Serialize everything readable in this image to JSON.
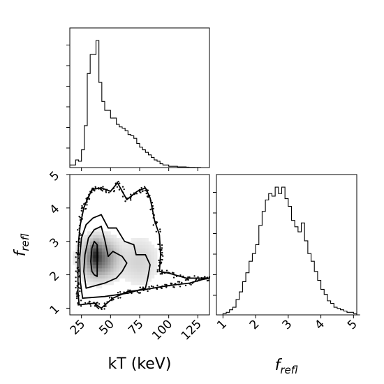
{
  "chart_data": {
    "type": "corner",
    "title": "",
    "panels": [
      {
        "id": "hist_kT",
        "type": "histogram",
        "x_param": "kT",
        "xlim": [
          15,
          135
        ],
        "x_ticks": [
          25,
          50,
          75,
          100,
          125
        ],
        "bin_width": 2.5,
        "bin_start": 15,
        "counts": [
          0.02,
          0.02,
          0.06,
          0.05,
          0.14,
          0.33,
          0.74,
          0.89,
          0.89,
          1.0,
          0.67,
          0.52,
          0.45,
          0.45,
          0.39,
          0.39,
          0.34,
          0.32,
          0.31,
          0.29,
          0.26,
          0.25,
          0.23,
          0.19,
          0.16,
          0.14,
          0.12,
          0.1,
          0.08,
          0.06,
          0.05,
          0.03,
          0.02,
          0.02,
          0.01,
          0.01,
          0.01,
          0.005,
          0.005,
          0.005,
          0.003,
          0.002,
          0.002,
          0.001,
          0.001,
          0,
          0,
          0
        ]
      },
      {
        "id": "joint_kT_frefl",
        "type": "hist2d_contour",
        "x_param": "kT",
        "y_param": "f_refl",
        "xlim": [
          15,
          135
        ],
        "ylim": [
          0.8,
          5.0
        ],
        "x_ticks": [
          25,
          50,
          75,
          100,
          125
        ],
        "y_ticks": [
          1,
          2,
          3,
          4,
          5
        ],
        "x_tick_labels": [
          "25",
          "50",
          "75",
          "100",
          "125"
        ],
        "y_tick_labels": [
          "1",
          "2",
          "3",
          "4",
          "5"
        ],
        "density_peak": {
          "x": 40,
          "y": 2.5
        },
        "contours": [
          {
            "level": 1,
            "points": [
              [
                36,
                2.0
              ],
              [
                38.5,
                1.95
              ],
              [
                38.5,
                2.5
              ],
              [
                38.5,
                2.9
              ],
              [
                36,
                3.0
              ],
              [
                34,
                2.8
              ],
              [
                33,
                2.4
              ],
              [
                34,
                2.1
              ],
              [
                36,
                2.0
              ]
            ]
          },
          {
            "level": 2,
            "points": [
              [
                29,
                1.6
              ],
              [
                45,
                1.75
              ],
              [
                55,
                1.9
              ],
              [
                60,
                2.1
              ],
              [
                64,
                2.35
              ],
              [
                60,
                2.55
              ],
              [
                52,
                2.7
              ],
              [
                48,
                2.55
              ],
              [
                45,
                3.05
              ],
              [
                42,
                3.45
              ],
              [
                36,
                3.35
              ],
              [
                31,
                3.1
              ],
              [
                28,
                2.6
              ],
              [
                27,
                2.1
              ],
              [
                29,
                1.6
              ]
            ]
          },
          {
            "level": 3,
            "points": [
              [
                26,
                1.3
              ],
              [
                45,
                1.35
              ],
              [
                65,
                1.45
              ],
              [
                80,
                1.6
              ],
              [
                82,
                1.9
              ],
              [
                84,
                2.3
              ],
              [
                80,
                2.6
              ],
              [
                72,
                2.6
              ],
              [
                70,
                2.9
              ],
              [
                62,
                3.0
              ],
              [
                55,
                3.4
              ],
              [
                48,
                3.4
              ],
              [
                42,
                3.8
              ],
              [
                35,
                3.7
              ],
              [
                29,
                3.5
              ],
              [
                25,
                3.1
              ],
              [
                23.5,
                2.5
              ],
              [
                24,
                1.8
              ],
              [
                26,
                1.3
              ]
            ]
          },
          {
            "level": 4,
            "points": [
              [
                23,
                1.1
              ],
              [
                36,
                1.15
              ],
              [
                42,
                1.0
              ],
              [
                52,
                1.3
              ],
              [
                65,
                1.5
              ],
              [
                78,
                1.55
              ],
              [
                95,
                1.65
              ],
              [
                105,
                1.7
              ],
              [
                118,
                1.75
              ],
              [
                128,
                1.85
              ],
              [
                135,
                1.9
              ],
              [
                115,
                1.9
              ],
              [
                100,
                2.05
              ],
              [
                92,
                2.1
              ],
              [
                93,
                2.6
              ],
              [
                92,
                3.2
              ],
              [
                88,
                3.6
              ],
              [
                84,
                4.3
              ],
              [
                80,
                4.6
              ],
              [
                73,
                4.5
              ],
              [
                64,
                4.25
              ],
              [
                56,
                4.75
              ],
              [
                50,
                4.5
              ],
              [
                42,
                4.6
              ],
              [
                34,
                4.55
              ],
              [
                30,
                4.25
              ],
              [
                27,
                4.0
              ],
              [
                24,
                3.5
              ],
              [
                22.5,
                3.0
              ],
              [
                22,
                2.5
              ],
              [
                22,
                1.9
              ],
              [
                22,
                1.5
              ],
              [
                23,
                1.1
              ]
            ]
          }
        ]
      },
      {
        "id": "hist_frefl",
        "type": "histogram",
        "x_param": "f_refl",
        "xlim": [
          0.8,
          5.1
        ],
        "x_ticks": [
          1,
          2,
          3,
          4,
          5
        ],
        "x_tick_labels": [
          "1",
          "2",
          "3",
          "4",
          "5"
        ],
        "bin_width": 0.1,
        "bin_start": 0.8,
        "counts": [
          0,
          0,
          0.01,
          0.02,
          0.04,
          0.06,
          0.12,
          0.18,
          0.26,
          0.33,
          0.42,
          0.48,
          0.55,
          0.7,
          0.81,
          0.9,
          0.95,
          0.93,
          1.0,
          0.95,
          1.0,
          0.91,
          0.85,
          0.74,
          0.69,
          0.65,
          0.72,
          0.58,
          0.48,
          0.42,
          0.34,
          0.27,
          0.2,
          0.16,
          0.11,
          0.09,
          0.06,
          0.05,
          0.04,
          0.03,
          0.02,
          0.02,
          0.01,
          0
        ]
      }
    ],
    "axis_labels": {
      "kT": "kT (keV)",
      "f_refl_base": "f",
      "f_refl_sub": "refl"
    }
  }
}
